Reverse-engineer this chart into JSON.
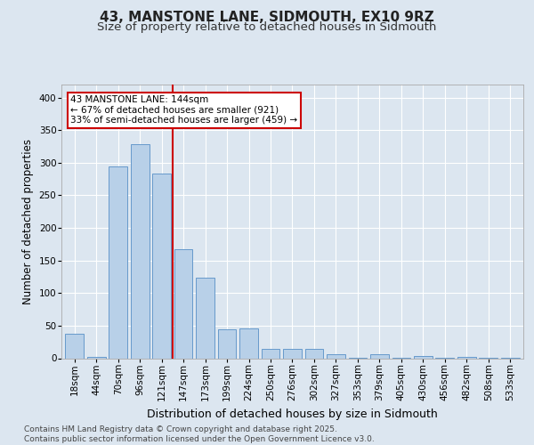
{
  "title": "43, MANSTONE LANE, SIDMOUTH, EX10 9RZ",
  "subtitle": "Size of property relative to detached houses in Sidmouth",
  "xlabel": "Distribution of detached houses by size in Sidmouth",
  "ylabel": "Number of detached properties",
  "categories": [
    "18sqm",
    "44sqm",
    "70sqm",
    "96sqm",
    "121sqm",
    "147sqm",
    "173sqm",
    "199sqm",
    "224sqm",
    "250sqm",
    "276sqm",
    "302sqm",
    "327sqm",
    "353sqm",
    "379sqm",
    "405sqm",
    "430sqm",
    "456sqm",
    "482sqm",
    "508sqm",
    "533sqm"
  ],
  "values": [
    38,
    2,
    295,
    328,
    283,
    168,
    123,
    44,
    46,
    14,
    15,
    15,
    6,
    1,
    6,
    1,
    3,
    1,
    2,
    1,
    1
  ],
  "bar_color": "#b8d0e8",
  "bar_edge_color": "#6699cc",
  "vline_color": "#cc0000",
  "vline_x_index": 4,
  "annotation_text": "43 MANSTONE LANE: 144sqm\n← 67% of detached houses are smaller (921)\n33% of semi-detached houses are larger (459) →",
  "annotation_box_facecolor": "#ffffff",
  "annotation_box_edgecolor": "#cc0000",
  "footer_text": "Contains HM Land Registry data © Crown copyright and database right 2025.\nContains public sector information licensed under the Open Government Licence v3.0.",
  "ylim": [
    0,
    420
  ],
  "yticks": [
    0,
    50,
    100,
    150,
    200,
    250,
    300,
    350,
    400
  ],
  "background_color": "#dce6f0",
  "grid_color": "#ffffff",
  "title_fontsize": 11,
  "subtitle_fontsize": 9.5,
  "ylabel_fontsize": 8.5,
  "xlabel_fontsize": 9,
  "tick_fontsize": 7.5,
  "annotation_fontsize": 7.5,
  "footer_fontsize": 6.5
}
